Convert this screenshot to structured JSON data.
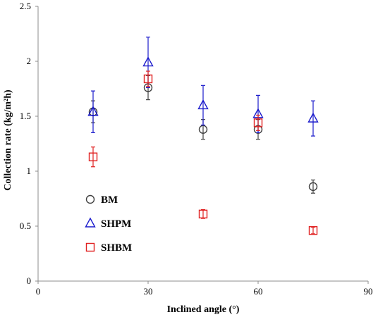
{
  "chart_data": {
    "type": "scatter",
    "xlabel": "Inclined angle (°)",
    "ylabel": "Collection rate (kg/m²h)",
    "xlim": [
      0,
      90
    ],
    "ylim": [
      0,
      2.5
    ],
    "x_ticks": [
      "0",
      "30",
      "60",
      "90"
    ],
    "y_ticks": [
      "0",
      "0.5",
      "1",
      "1.5",
      "2",
      "2.5"
    ],
    "grid": false,
    "legend_position": "inside-left",
    "error_bars": true,
    "series": [
      {
        "name": "BM",
        "marker": "circle",
        "color": "#404040",
        "x": [
          15,
          30,
          45,
          60,
          75
        ],
        "y": [
          1.54,
          1.76,
          1.38,
          1.38,
          0.86
        ],
        "err": [
          0.1,
          0.11,
          0.09,
          0.09,
          0.06
        ]
      },
      {
        "name": "SHPM",
        "marker": "triangle",
        "color": "#1a1acc",
        "x": [
          15,
          30,
          45,
          60,
          75
        ],
        "y": [
          1.54,
          1.99,
          1.6,
          1.52,
          1.48
        ],
        "err": [
          0.19,
          0.23,
          0.18,
          0.17,
          0.16
        ]
      },
      {
        "name": "SHBM",
        "marker": "square",
        "color": "#e02020",
        "x": [
          15,
          30,
          45,
          60,
          75
        ],
        "y": [
          1.13,
          1.84,
          0.61,
          1.44,
          0.46
        ],
        "err": [
          0.09,
          0.07,
          0.04,
          0.07,
          0.03
        ]
      }
    ]
  }
}
